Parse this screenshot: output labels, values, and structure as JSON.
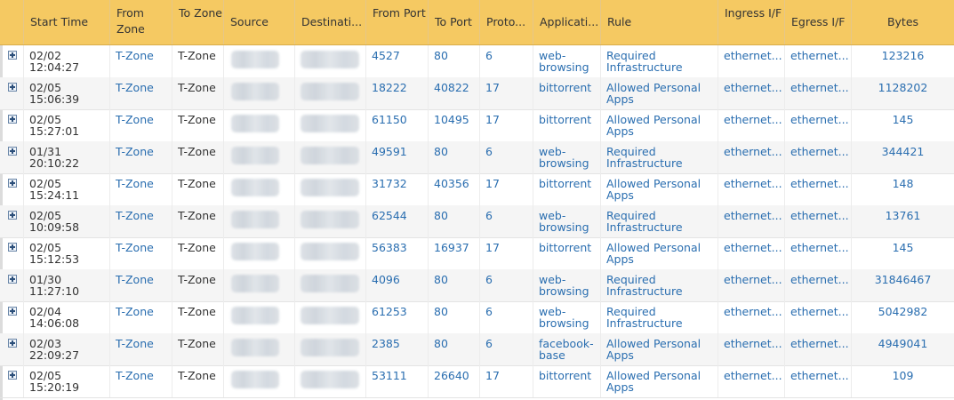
{
  "columns": {
    "start_time": "Start Time",
    "from_zone": "From Zone",
    "to_zone": "To Zone",
    "source": "Source",
    "destination": "Destinati...",
    "from_port": "From Port",
    "to_port": "To Port",
    "protocol": "Proto...",
    "application": "Applicati...",
    "rule": "Rule",
    "ingress": "Ingress I/F",
    "egress": "Egress I/F",
    "bytes": "Bytes"
  },
  "rows": [
    {
      "start_time": "02/02 12:04:27",
      "from_zone": "T-Zone",
      "to_zone": "T-Zone",
      "from_port": "4527",
      "to_port": "80",
      "protocol": "6",
      "application": "web-browsing",
      "rule": "Required Infrastructure",
      "ingress": "ethernet...",
      "egress": "ethernet...",
      "bytes": "123216"
    },
    {
      "start_time": "02/05 15:06:39",
      "from_zone": "T-Zone",
      "to_zone": "T-Zone",
      "from_port": "18222",
      "to_port": "40822",
      "protocol": "17",
      "application": "bittorrent",
      "rule": "Allowed Personal Apps",
      "ingress": "ethernet...",
      "egress": "ethernet...",
      "bytes": "1128202"
    },
    {
      "start_time": "02/05 15:27:01",
      "from_zone": "T-Zone",
      "to_zone": "T-Zone",
      "from_port": "61150",
      "to_port": "10495",
      "protocol": "17",
      "application": "bittorrent",
      "rule": "Allowed Personal Apps",
      "ingress": "ethernet...",
      "egress": "ethernet...",
      "bytes": "145"
    },
    {
      "start_time": "01/31 20:10:22",
      "from_zone": "T-Zone",
      "to_zone": "T-Zone",
      "from_port": "49591",
      "to_port": "80",
      "protocol": "6",
      "application": "web-browsing",
      "rule": "Required Infrastructure",
      "ingress": "ethernet...",
      "egress": "ethernet...",
      "bytes": "344421"
    },
    {
      "start_time": "02/05 15:24:11",
      "from_zone": "T-Zone",
      "to_zone": "T-Zone",
      "from_port": "31732",
      "to_port": "40356",
      "protocol": "17",
      "application": "bittorrent",
      "rule": "Allowed Personal Apps",
      "ingress": "ethernet...",
      "egress": "ethernet...",
      "bytes": "148"
    },
    {
      "start_time": "02/05 10:09:58",
      "from_zone": "T-Zone",
      "to_zone": "T-Zone",
      "from_port": "62544",
      "to_port": "80",
      "protocol": "6",
      "application": "web-browsing",
      "rule": "Required Infrastructure",
      "ingress": "ethernet...",
      "egress": "ethernet...",
      "bytes": "13761"
    },
    {
      "start_time": "02/05 15:12:53",
      "from_zone": "T-Zone",
      "to_zone": "T-Zone",
      "from_port": "56383",
      "to_port": "16937",
      "protocol": "17",
      "application": "bittorrent",
      "rule": "Allowed Personal Apps",
      "ingress": "ethernet...",
      "egress": "ethernet...",
      "bytes": "145"
    },
    {
      "start_time": "01/30 11:27:10",
      "from_zone": "T-Zone",
      "to_zone": "T-Zone",
      "from_port": "4096",
      "to_port": "80",
      "protocol": "6",
      "application": "web-browsing",
      "rule": "Required Infrastructure",
      "ingress": "ethernet...",
      "egress": "ethernet...",
      "bytes": "31846467"
    },
    {
      "start_time": "02/04 14:06:08",
      "from_zone": "T-Zone",
      "to_zone": "T-Zone",
      "from_port": "61253",
      "to_port": "80",
      "protocol": "6",
      "application": "web-browsing",
      "rule": "Required Infrastructure",
      "ingress": "ethernet...",
      "egress": "ethernet...",
      "bytes": "5042982"
    },
    {
      "start_time": "02/03 22:09:27",
      "from_zone": "T-Zone",
      "to_zone": "T-Zone",
      "from_port": "2385",
      "to_port": "80",
      "protocol": "6",
      "application": "facebook-base",
      "rule": "Allowed Personal Apps",
      "ingress": "ethernet...",
      "egress": "ethernet...",
      "bytes": "4949041"
    },
    {
      "start_time": "02/05 15:20:19",
      "from_zone": "T-Zone",
      "to_zone": "T-Zone",
      "from_port": "53111",
      "to_port": "26640",
      "protocol": "17",
      "application": "bittorrent",
      "rule": "Allowed Personal Apps",
      "ingress": "ethernet...",
      "egress": "ethernet...",
      "bytes": "109"
    }
  ]
}
